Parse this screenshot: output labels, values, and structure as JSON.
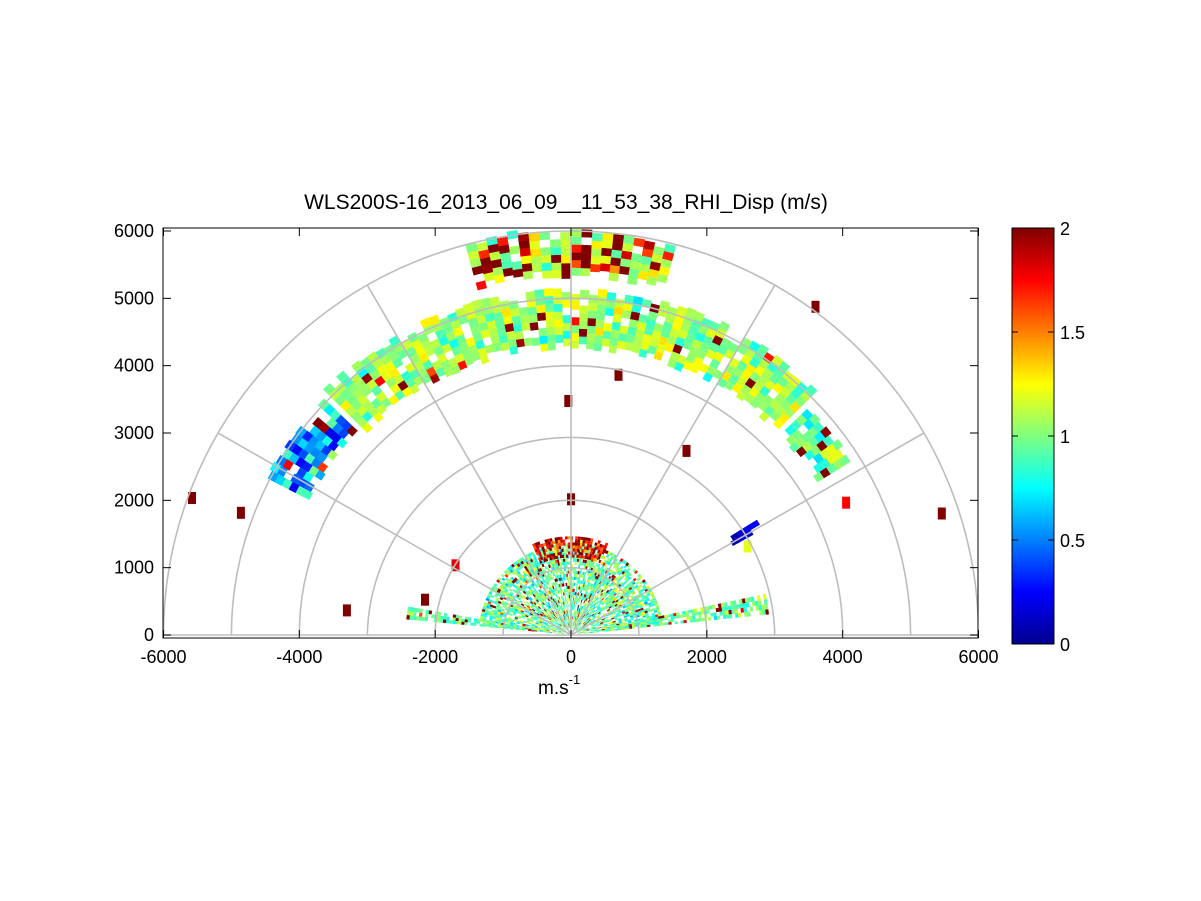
{
  "chart_data": {
    "type": "heatmap",
    "subtype": "polar RHI scan (range-height indicator)",
    "title": "WLS200S-16_2013_06_09__11_53_38_RHI_Disp (m/s)",
    "xlabel_base": "m.s",
    "xlabel_sup": "-1",
    "ylabel": "",
    "xlim": [
      -6000,
      6000
    ],
    "ylim": [
      0,
      6000
    ],
    "x_ticks": [
      "-6000",
      "-4000",
      "-2000",
      "0",
      "2000",
      "4000",
      "6000"
    ],
    "y_ticks": [
      "0",
      "1000",
      "2000",
      "3000",
      "4000",
      "5000",
      "6000"
    ],
    "polar_grid": {
      "ring_radii": [
        1000,
        2000,
        3000,
        4000,
        5000,
        6000
      ],
      "spoke_angles_deg": [
        0,
        30,
        60,
        90,
        120,
        150,
        180
      ]
    },
    "colorbar": {
      "colormap": "jet",
      "min": 0,
      "max": 2,
      "tick_values": [
        0,
        0.5,
        1,
        1.5,
        2
      ],
      "tick_labels": [
        "0",
        "0.5",
        "1",
        "1.5",
        "2"
      ]
    },
    "regions": [
      {
        "name": "upper-layer-band",
        "theta_deg": [
          45,
          135
        ],
        "r_range": [
          4300,
          5050
        ],
        "mean_value": 1.05,
        "spread": 0.22,
        "outlier_rate": 0.04
      },
      {
        "name": "upper-layer-left-edge",
        "theta_deg": [
          136,
          152
        ],
        "r_range": [
          4400,
          5000
        ],
        "mean_value": 0.55,
        "spread": 0.35,
        "outlier_rate": 0.08
      },
      {
        "name": "upper-layer-right-edge",
        "theta_deg": [
          32,
          44
        ],
        "r_range": [
          4300,
          4800
        ],
        "mean_value": 0.95,
        "spread": 0.3,
        "outlier_rate": 0.2
      },
      {
        "name": "top-layer",
        "theta_deg": [
          75,
          105
        ],
        "r_range": [
          5350,
          5950
        ],
        "mean_value": 1.1,
        "spread": 0.3,
        "outlier_rate": 0.35
      },
      {
        "name": "near-field-fan",
        "theta_deg": [
          6,
          174
        ],
        "r_range": [
          100,
          1350
        ],
        "mean_value": 0.95,
        "spread": 0.28,
        "outlier_rate": 0.1
      },
      {
        "name": "near-field-top-noise",
        "theta_deg": [
          68,
          112
        ],
        "r_range": [
          1150,
          1450
        ],
        "mean_value": 1.7,
        "spread": 0.35,
        "outlier_rate": 0.5
      },
      {
        "name": "left-low-ray",
        "theta_deg": [
          170,
          174
        ],
        "r_range": [
          500,
          2400
        ],
        "mean_value": 0.95,
        "spread": 0.15,
        "outlier_rate": 0.1
      },
      {
        "name": "right-low-ray",
        "theta_deg": [
          6,
          12
        ],
        "r_range": [
          500,
          2900
        ],
        "mean_value": 0.95,
        "spread": 0.2,
        "outlier_rate": 0.1
      },
      {
        "name": "right-blue-patch",
        "theta_deg": [
          29,
          32
        ],
        "r_range": [
          2800,
          3150
        ],
        "mean_value": 0.2,
        "spread": 0.15,
        "outlier_rate": 0
      }
    ],
    "isolated_points": [
      {
        "x": -5580,
        "y": 2020,
        "value": 2
      },
      {
        "x": -4860,
        "y": 1800,
        "value": 2
      },
      {
        "x": 4050,
        "y": 1950,
        "value": 1.75
      },
      {
        "x": 5460,
        "y": 1790,
        "value": 2
      },
      {
        "x": -40,
        "y": 3460,
        "value": 2
      },
      {
        "x": 700,
        "y": 3850,
        "value": 2
      },
      {
        "x": 1700,
        "y": 2720,
        "value": 2
      },
      {
        "x": 0,
        "y": 2000,
        "value": 2
      },
      {
        "x": 3600,
        "y": 4860,
        "value": 2
      },
      {
        "x": 2600,
        "y": 1300,
        "value": 1.2
      },
      {
        "x": -2150,
        "y": 510,
        "value": 2
      },
      {
        "x": -1700,
        "y": 1020,
        "value": 1.8
      },
      {
        "x": -3300,
        "y": 350,
        "value": 2
      }
    ]
  }
}
